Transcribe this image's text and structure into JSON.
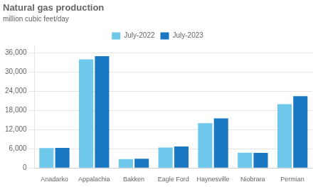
{
  "chart_data": {
    "type": "bar",
    "title": "Natural gas production",
    "subtitle": "million cubic feet/day",
    "categories": [
      "Anadarko",
      "Appalachia",
      "Bakken",
      "Eagle Ford",
      "Haynesville",
      "Niobrara",
      "Permian"
    ],
    "series": [
      {
        "name": "July-2022",
        "color": "#6DC8EC",
        "values": [
          6200,
          34000,
          2800,
          6400,
          14000,
          4800,
          20000
        ]
      },
      {
        "name": "July-2023",
        "color": "#1A78C2",
        "values": [
          6300,
          35000,
          2900,
          6700,
          15500,
          4700,
          22500
        ]
      }
    ],
    "ylim": [
      0,
      38000
    ],
    "yticks": [
      0,
      {
        "value": 6000,
        "label": "6,000"
      },
      {
        "value": 12000,
        "label": "12,000"
      },
      {
        "value": 18000,
        "label": "18,000"
      },
      {
        "value": 24000,
        "label": "24,000"
      },
      {
        "value": 30000,
        "label": "30,000"
      },
      {
        "value": 36000,
        "label": "36,000"
      }
    ],
    "grid": true,
    "legend": "top"
  }
}
